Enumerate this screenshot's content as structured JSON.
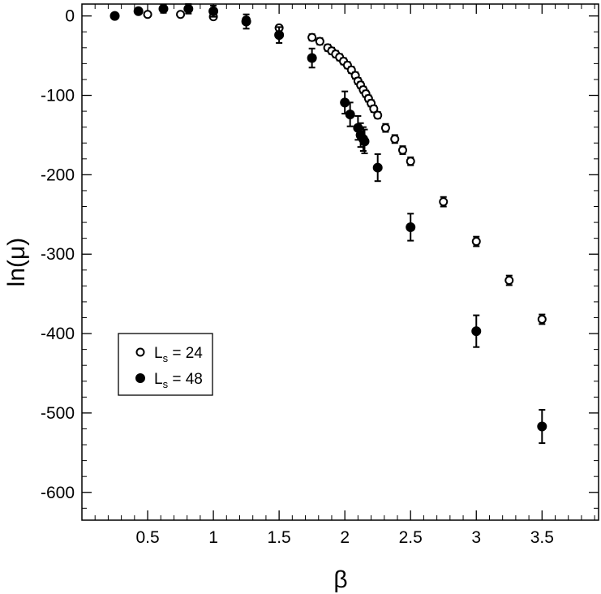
{
  "chart_data": {
    "type": "scatter",
    "xlabel": "β",
    "ylabel": "ln(μ)",
    "xlim": [
      0.0,
      3.93
    ],
    "ylim": [
      -635,
      15
    ],
    "x_ticks": [
      0.5,
      1,
      1.5,
      2,
      2.5,
      3,
      3.5
    ],
    "x_tick_labels": [
      "0.5",
      "1",
      "1.5",
      "2",
      "2.5",
      "3",
      "3.5"
    ],
    "y_ticks": [
      0,
      -100,
      -200,
      -300,
      -400,
      -500,
      -600
    ],
    "y_tick_labels": [
      "0",
      "-100",
      "-200",
      "-300",
      "-400",
      "-500",
      "-600"
    ],
    "grid": false,
    "legend_position": "lower-left",
    "series": [
      {
        "name": "L = 24",
        "legend_main": "L",
        "legend_sub": "s",
        "legend_value": " = 24",
        "marker": "open-circle",
        "points": [
          {
            "x": 0.5,
            "y": 2,
            "err": 1.5
          },
          {
            "x": 0.75,
            "y": 2,
            "err": 1.5
          },
          {
            "x": 1.0,
            "y": -1,
            "err": 2
          },
          {
            "x": 1.25,
            "y": -5,
            "err": 3
          },
          {
            "x": 1.5,
            "y": -15,
            "err": 3
          },
          {
            "x": 1.75,
            "y": -27,
            "err": 4
          },
          {
            "x": 1.81,
            "y": -32,
            "err": 4
          },
          {
            "x": 1.87,
            "y": -40,
            "err": 4
          },
          {
            "x": 1.9,
            "y": -44,
            "err": 4
          },
          {
            "x": 1.93,
            "y": -48,
            "err": 4
          },
          {
            "x": 1.96,
            "y": -52,
            "err": 4
          },
          {
            "x": 1.99,
            "y": -57,
            "err": 4
          },
          {
            "x": 2.02,
            "y": -62,
            "err": 4
          },
          {
            "x": 2.05,
            "y": -68,
            "err": 4
          },
          {
            "x": 2.08,
            "y": -75,
            "err": 4
          },
          {
            "x": 2.1,
            "y": -82,
            "err": 4
          },
          {
            "x": 2.12,
            "y": -87,
            "err": 4
          },
          {
            "x": 2.14,
            "y": -93,
            "err": 4
          },
          {
            "x": 2.16,
            "y": -98,
            "err": 4
          },
          {
            "x": 2.18,
            "y": -104,
            "err": 4
          },
          {
            "x": 2.2,
            "y": -110,
            "err": 4
          },
          {
            "x": 2.22,
            "y": -117,
            "err": 4
          },
          {
            "x": 2.25,
            "y": -125,
            "err": 4
          },
          {
            "x": 2.31,
            "y": -141,
            "err": 5
          },
          {
            "x": 2.38,
            "y": -155,
            "err": 5
          },
          {
            "x": 2.44,
            "y": -169,
            "err": 5
          },
          {
            "x": 2.5,
            "y": -183,
            "err": 5
          },
          {
            "x": 2.75,
            "y": -234,
            "err": 6
          },
          {
            "x": 3.0,
            "y": -284,
            "err": 6
          },
          {
            "x": 3.25,
            "y": -333,
            "err": 6
          },
          {
            "x": 3.5,
            "y": -382,
            "err": 6
          }
        ]
      },
      {
        "name": "L = 48",
        "legend_main": "L",
        "legend_sub": "s",
        "legend_value": " = 48",
        "marker": "filled-circle",
        "points": [
          {
            "x": 0.25,
            "y": 0,
            "err": 1
          },
          {
            "x": 0.43,
            "y": 6,
            "err": 2
          },
          {
            "x": 0.62,
            "y": 9,
            "err": 5
          },
          {
            "x": 0.81,
            "y": 9,
            "err": 6
          },
          {
            "x": 1.0,
            "y": 6,
            "err": 7
          },
          {
            "x": 1.25,
            "y": -7,
            "err": 9
          },
          {
            "x": 1.5,
            "y": -24,
            "err": 10
          },
          {
            "x": 1.75,
            "y": -53,
            "err": 12
          },
          {
            "x": 2.0,
            "y": -109,
            "err": 14
          },
          {
            "x": 2.04,
            "y": -124,
            "err": 15
          },
          {
            "x": 2.1,
            "y": -141,
            "err": 15
          },
          {
            "x": 2.12,
            "y": -150,
            "err": 15
          },
          {
            "x": 2.14,
            "y": -155,
            "err": 15
          },
          {
            "x": 2.15,
            "y": -158,
            "err": 15
          },
          {
            "x": 2.25,
            "y": -191,
            "err": 17
          },
          {
            "x": 2.5,
            "y": -266,
            "err": 17
          },
          {
            "x": 3.0,
            "y": -397,
            "err": 20
          },
          {
            "x": 3.5,
            "y": -517,
            "err": 21
          }
        ]
      }
    ]
  }
}
